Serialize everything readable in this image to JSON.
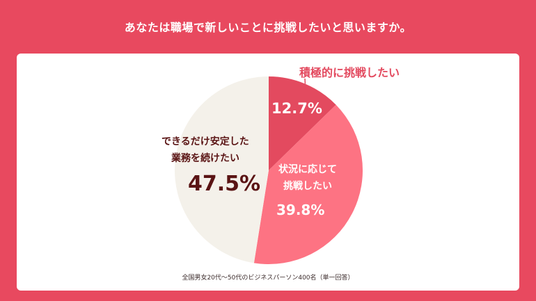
{
  "title": "あなたは職場で新しいことに挑戦したいと思いますか。",
  "note": "全国男女20代〜50代のビジネスパーソン400名（単一回答）",
  "colors": {
    "background": "#e8495f",
    "slice_1": "#e34a5f",
    "slice_2": "#fd7383",
    "slice_3": "#f4f1ea",
    "label_dark": "#5a1414",
    "label_pink": "#e34a5f"
  },
  "chart_data": {
    "type": "pie",
    "slices": [
      {
        "label": "積極的に挑戦したい",
        "value": 12.7,
        "display": "12.7%"
      },
      {
        "label_lines": [
          "状況に応じて",
          "挑戦したい"
        ],
        "value": 39.8,
        "display": "39.8%"
      },
      {
        "label_lines": [
          "できるだけ安定した",
          "業務を続けたい"
        ],
        "value": 47.5,
        "display": "47.5%"
      }
    ]
  }
}
